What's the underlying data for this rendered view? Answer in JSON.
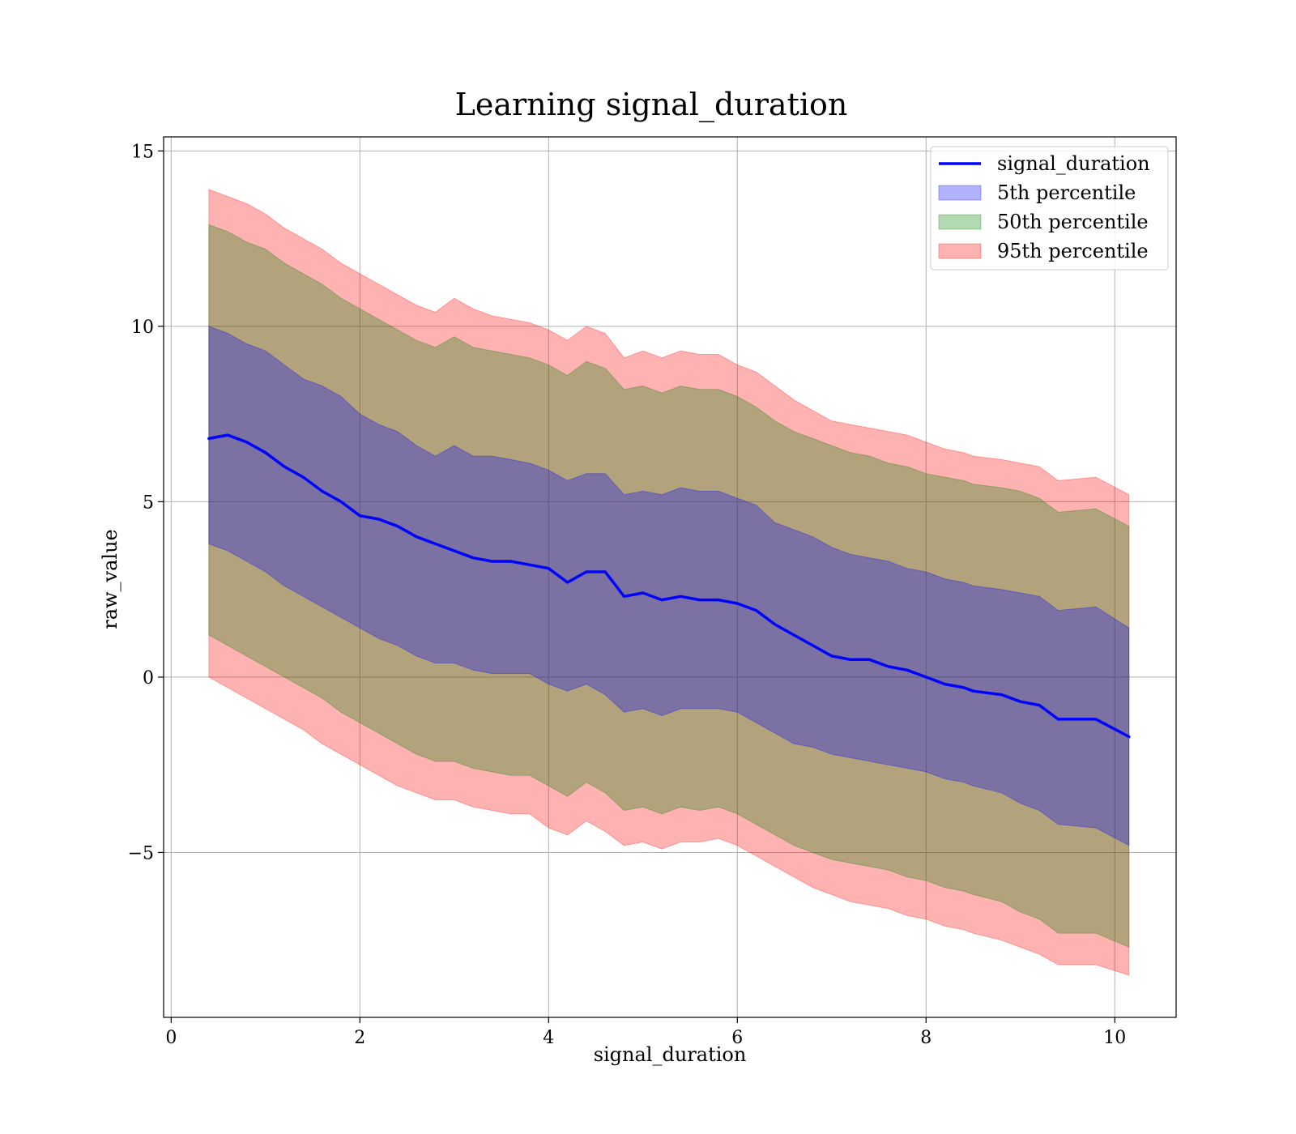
{
  "chart_data": {
    "type": "area",
    "title": "Learning signal_duration",
    "xlabel": "signal_duration",
    "ylabel": "raw_value",
    "xlim": [
      -0.08,
      10.65
    ],
    "ylim": [
      -9.7,
      15.4
    ],
    "xticks": [
      0,
      2,
      4,
      6,
      8,
      10
    ],
    "yticks": [
      -5,
      0,
      5,
      10,
      15
    ],
    "xtick_labels": [
      "0",
      "2",
      "4",
      "6",
      "8",
      "10"
    ],
    "ytick_labels": [
      "−5",
      "0",
      "5",
      "10",
      "15"
    ],
    "grid": true,
    "legend": "top-right",
    "colors": {
      "line": "#0000ff",
      "p5": "#0000ff",
      "p50": "#008000",
      "p95": "#ff0000",
      "grid": "#b0b0b0"
    },
    "x": [
      0.4,
      0.6,
      0.8,
      1.0,
      1.2,
      1.4,
      1.6,
      1.8,
      2.0,
      2.2,
      2.4,
      2.6,
      2.8,
      3.0,
      3.2,
      3.4,
      3.6,
      3.8,
      4.0,
      4.2,
      4.4,
      4.6,
      4.8,
      5.0,
      5.2,
      5.4,
      5.6,
      5.8,
      6.0,
      6.2,
      6.4,
      6.6,
      6.8,
      7.0,
      7.2,
      7.4,
      7.6,
      7.8,
      8.0,
      8.2,
      8.4,
      8.5,
      8.8,
      9.0,
      9.2,
      9.4,
      9.8,
      10.15
    ],
    "series": [
      {
        "name": "signal_duration",
        "values": [
          6.8,
          6.9,
          6.7,
          6.4,
          6.0,
          5.7,
          5.3,
          5.0,
          4.6,
          4.5,
          4.3,
          4.0,
          3.8,
          3.6,
          3.4,
          3.3,
          3.3,
          3.2,
          3.1,
          2.7,
          3.0,
          3.0,
          2.3,
          2.4,
          2.2,
          2.3,
          2.2,
          2.2,
          2.1,
          1.9,
          1.5,
          1.2,
          0.9,
          0.6,
          0.5,
          0.5,
          0.3,
          0.2,
          0.0,
          -0.2,
          -0.3,
          -0.4,
          -0.5,
          -0.7,
          -0.8,
          -1.2,
          -1.2,
          -1.7
        ]
      },
      {
        "name": "5th percentile",
        "lower": [
          3.8,
          3.6,
          3.3,
          3.0,
          2.6,
          2.3,
          2.0,
          1.7,
          1.4,
          1.1,
          0.9,
          0.6,
          0.4,
          0.4,
          0.2,
          0.1,
          0.1,
          0.1,
          -0.2,
          -0.4,
          -0.2,
          -0.5,
          -1.0,
          -0.9,
          -1.1,
          -0.9,
          -0.9,
          -0.9,
          -1.0,
          -1.3,
          -1.6,
          -1.9,
          -2.0,
          -2.2,
          -2.3,
          -2.4,
          -2.5,
          -2.6,
          -2.7,
          -2.9,
          -3.0,
          -3.1,
          -3.3,
          -3.6,
          -3.8,
          -4.2,
          -4.3,
          -4.8
        ],
        "upper": [
          10.0,
          9.8,
          9.5,
          9.3,
          8.9,
          8.5,
          8.3,
          8.0,
          7.5,
          7.2,
          7.0,
          6.6,
          6.3,
          6.6,
          6.3,
          6.3,
          6.2,
          6.1,
          5.9,
          5.6,
          5.8,
          5.8,
          5.2,
          5.3,
          5.2,
          5.4,
          5.3,
          5.3,
          5.1,
          4.9,
          4.4,
          4.2,
          4.0,
          3.7,
          3.5,
          3.4,
          3.3,
          3.1,
          3.0,
          2.8,
          2.7,
          2.6,
          2.5,
          2.4,
          2.3,
          1.9,
          2.0,
          1.4
        ]
      },
      {
        "name": "50th percentile",
        "lower": [
          1.2,
          0.9,
          0.6,
          0.3,
          0.0,
          -0.3,
          -0.6,
          -1.0,
          -1.3,
          -1.6,
          -1.9,
          -2.2,
          -2.4,
          -2.4,
          -2.6,
          -2.7,
          -2.8,
          -2.8,
          -3.1,
          -3.4,
          -3.0,
          -3.3,
          -3.8,
          -3.7,
          -3.9,
          -3.7,
          -3.8,
          -3.7,
          -3.9,
          -4.2,
          -4.5,
          -4.8,
          -5.0,
          -5.2,
          -5.3,
          -5.4,
          -5.5,
          -5.7,
          -5.8,
          -6.0,
          -6.1,
          -6.2,
          -6.4,
          -6.7,
          -6.9,
          -7.3,
          -7.3,
          -7.7
        ],
        "upper": [
          12.9,
          12.7,
          12.4,
          12.2,
          11.8,
          11.5,
          11.2,
          10.8,
          10.5,
          10.2,
          9.9,
          9.6,
          9.4,
          9.7,
          9.4,
          9.3,
          9.2,
          9.1,
          8.9,
          8.6,
          9.0,
          8.8,
          8.2,
          8.3,
          8.1,
          8.3,
          8.2,
          8.2,
          8.0,
          7.7,
          7.3,
          7.0,
          6.8,
          6.6,
          6.4,
          6.3,
          6.1,
          6.0,
          5.8,
          5.7,
          5.6,
          5.5,
          5.4,
          5.3,
          5.1,
          4.7,
          4.8,
          4.3
        ]
      },
      {
        "name": "95th percentile",
        "lower": [
          0.0,
          -0.3,
          -0.6,
          -0.9,
          -1.2,
          -1.5,
          -1.9,
          -2.2,
          -2.5,
          -2.8,
          -3.1,
          -3.3,
          -3.5,
          -3.5,
          -3.7,
          -3.8,
          -3.9,
          -3.9,
          -4.3,
          -4.5,
          -4.1,
          -4.4,
          -4.8,
          -4.7,
          -4.9,
          -4.7,
          -4.7,
          -4.6,
          -4.8,
          -5.1,
          -5.4,
          -5.7,
          -6.0,
          -6.2,
          -6.4,
          -6.5,
          -6.6,
          -6.8,
          -6.9,
          -7.1,
          -7.2,
          -7.3,
          -7.5,
          -7.7,
          -7.9,
          -8.2,
          -8.2,
          -8.5
        ],
        "upper": [
          13.9,
          13.7,
          13.5,
          13.2,
          12.8,
          12.5,
          12.2,
          11.8,
          11.5,
          11.2,
          10.9,
          10.6,
          10.4,
          10.8,
          10.5,
          10.3,
          10.2,
          10.1,
          9.9,
          9.6,
          10.0,
          9.8,
          9.1,
          9.3,
          9.1,
          9.3,
          9.2,
          9.2,
          8.9,
          8.7,
          8.3,
          7.9,
          7.6,
          7.3,
          7.2,
          7.1,
          7.0,
          6.9,
          6.7,
          6.5,
          6.4,
          6.3,
          6.2,
          6.1,
          6.0,
          5.6,
          5.7,
          5.2
        ]
      }
    ]
  }
}
